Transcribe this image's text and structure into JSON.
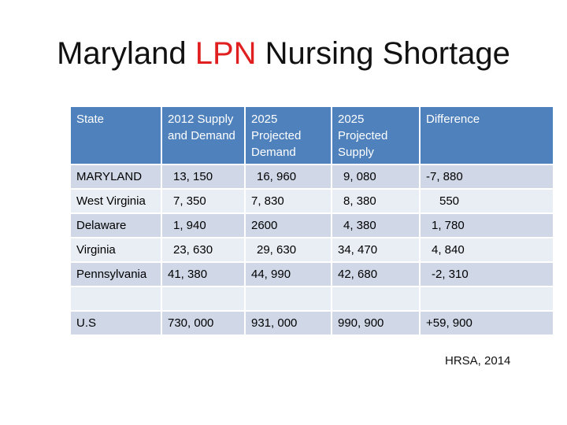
{
  "title": {
    "prefix": "Maryland ",
    "accent": "LPN",
    "suffix": " Nursing Shortage"
  },
  "table": {
    "headers": [
      "State",
      "2012 Supply and Demand",
      "2025 Projected Demand",
      "2025 Projected Supply",
      "Difference"
    ],
    "rows": [
      [
        "MARYLAND",
        "13, 150",
        "16, 960",
        "9, 080",
        "-7, 880"
      ],
      [
        "West Virginia",
        "7, 350",
        "7, 830",
        "8, 380",
        "550"
      ],
      [
        "Delaware",
        "1, 940",
        "2600",
        "4, 380",
        "1, 780"
      ],
      [
        "Virginia",
        "23, 630",
        "29, 630",
        "34, 470",
        "4, 840"
      ],
      [
        "Pennsylvania",
        "41, 380",
        "44, 990",
        "42, 680",
        "-2, 310"
      ],
      [
        "",
        "",
        "",
        "",
        ""
      ],
      [
        "U.S",
        "730, 000",
        "931, 000",
        "990, 900",
        "+59, 900"
      ]
    ]
  },
  "source": "HRSA, 2014",
  "colors": {
    "accent": "#e02020",
    "header_bg": "#4f81bd",
    "row_dark": "#d0d8e8",
    "row_light": "#e9edf4"
  }
}
